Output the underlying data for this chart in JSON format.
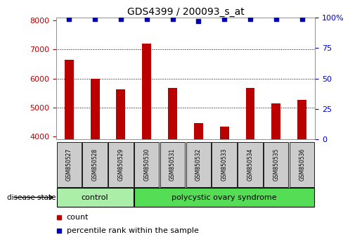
{
  "title": "GDS4399 / 200093_s_at",
  "samples": [
    "GSM850527",
    "GSM850528",
    "GSM850529",
    "GSM850530",
    "GSM850531",
    "GSM850532",
    "GSM850533",
    "GSM850534",
    "GSM850535",
    "GSM850536"
  ],
  "counts": [
    6640,
    6000,
    5620,
    7200,
    5680,
    4470,
    4340,
    5680,
    5150,
    5270
  ],
  "percentile_ranks": [
    99,
    99,
    99,
    99,
    99,
    97,
    99,
    99,
    99,
    99
  ],
  "ylim_left": [
    3900,
    8100
  ],
  "ylim_right": [
    0,
    100
  ],
  "yticks_left": [
    4000,
    5000,
    6000,
    7000,
    8000
  ],
  "yticks_right": [
    0,
    25,
    50,
    75,
    100
  ],
  "bar_color": "#bb0000",
  "dot_color": "#0000bb",
  "grid_color": "#000000",
  "left_tick_color": "#bb0000",
  "right_tick_color": "#0000bb",
  "title_fontsize": 10,
  "groups": [
    {
      "label": "control",
      "start": 0,
      "end": 2,
      "color": "#aaeeaa"
    },
    {
      "label": "polycystic ovary syndrome",
      "start": 3,
      "end": 9,
      "color": "#55dd55"
    }
  ],
  "disease_state_label": "disease state",
  "legend_count_label": "count",
  "legend_percentile_label": "percentile rank within the sample",
  "bg_color": "#ffffff",
  "sample_bg_color": "#cccccc",
  "bar_width": 0.35
}
